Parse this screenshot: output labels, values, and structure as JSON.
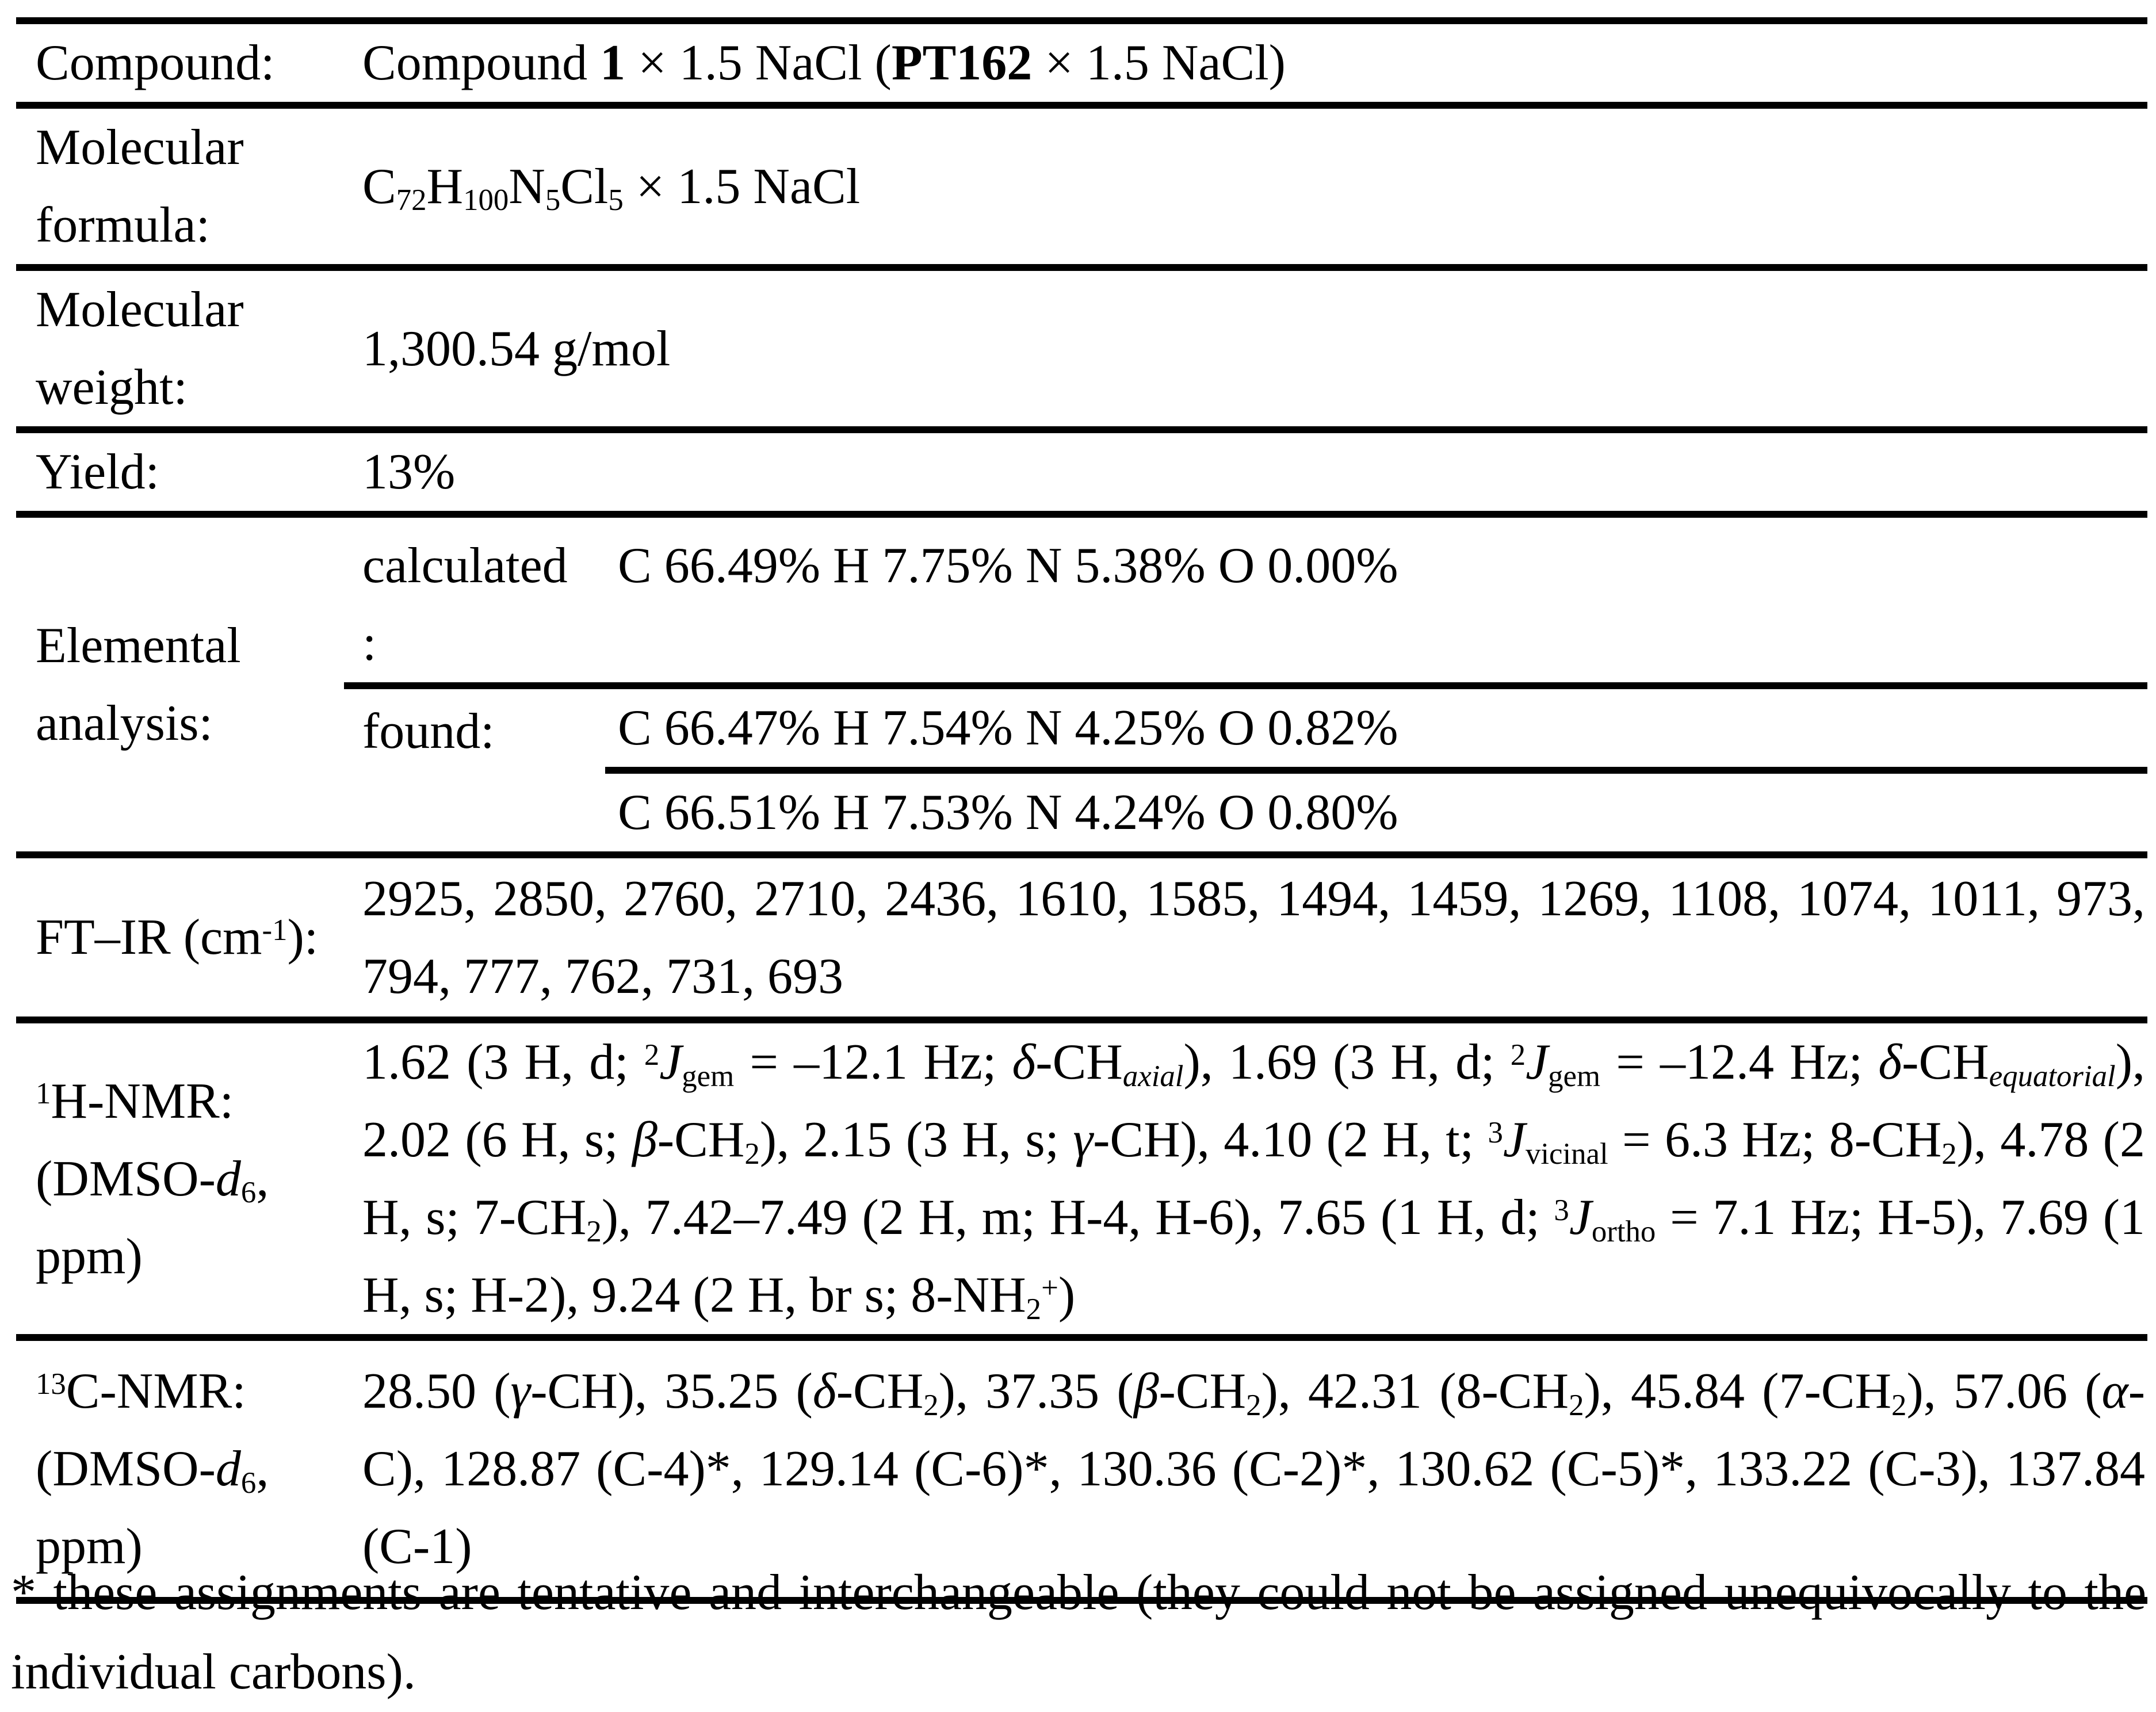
{
  "rows": {
    "compound": {
      "label": [
        {
          "t": "r",
          "s": "Compound:"
        }
      ],
      "value": [
        {
          "t": "r",
          "s": "Compound "
        },
        {
          "t": "b",
          "s": "1"
        },
        {
          "t": "r",
          "s": " × 1.5 NaCl ("
        },
        {
          "t": "b",
          "s": "PT162"
        },
        {
          "t": "r",
          "s": " × 1.5 NaCl)"
        }
      ]
    },
    "formula": {
      "label": [
        {
          "t": "r",
          "s": "Molecular"
        },
        {
          "t": "br"
        },
        {
          "t": "r",
          "s": "formula:"
        }
      ],
      "value": [
        {
          "t": "r",
          "s": "C"
        },
        {
          "t": "sub",
          "s": "72"
        },
        {
          "t": "r",
          "s": "H"
        },
        {
          "t": "sub",
          "s": "100"
        },
        {
          "t": "r",
          "s": "N"
        },
        {
          "t": "sub",
          "s": "5"
        },
        {
          "t": "r",
          "s": "Cl"
        },
        {
          "t": "sub",
          "s": "5"
        },
        {
          "t": "r",
          "s": " × 1.5 NaCl"
        }
      ]
    },
    "weight": {
      "label": [
        {
          "t": "r",
          "s": "Molecular"
        },
        {
          "t": "br"
        },
        {
          "t": "r",
          "s": "weight:"
        }
      ],
      "value": [
        {
          "t": "r",
          "s": "1,300.54 g/mol"
        }
      ]
    },
    "yield": {
      "label": [
        {
          "t": "r",
          "s": "Yield:"
        }
      ],
      "value": [
        {
          "t": "r",
          "s": "13%"
        }
      ]
    },
    "elemental": {
      "label": [
        {
          "t": "r",
          "s": "Elemental"
        },
        {
          "t": "br"
        },
        {
          "t": "r",
          "s": "analysis:"
        }
      ],
      "calculated": {
        "label": [
          {
            "t": "r",
            "s": "calculated"
          },
          {
            "t": "br"
          },
          {
            "t": "r",
            "s": ":"
          }
        ],
        "value": [
          {
            "t": "r",
            "s": "C 66.49% H 7.75% N 5.38% O 0.00%"
          }
        ]
      },
      "found": {
        "label": [
          {
            "t": "r",
            "s": "found:"
          }
        ],
        "value": [
          {
            "t": "r",
            "s": "C 66.47% H 7.54% N 4.25% O 0.82%"
          }
        ],
        "value2": [
          {
            "t": "r",
            "s": "C 66.51% H 7.53% N 4.24% O 0.80%"
          }
        ]
      }
    },
    "ftir": {
      "label": [
        {
          "t": "r",
          "s": "FT–IR (cm"
        },
        {
          "t": "sup",
          "s": "-1"
        },
        {
          "t": "r",
          "s": "):"
        }
      ],
      "value": [
        {
          "t": "r",
          "s": "2925, 2850, 2760, 2710, 2436, 1610, 1585, 1494, 1459, 1269, 1108, 1074, 1011, 973, 794, 777, 762, 731, 693"
        }
      ]
    },
    "hnmr": {
      "label": [
        {
          "t": "sup",
          "s": "1"
        },
        {
          "t": "r",
          "s": "H-NMR:"
        },
        {
          "t": "br"
        },
        {
          "t": "r",
          "s": "(DMSO-"
        },
        {
          "t": "i",
          "s": "d"
        },
        {
          "t": "sub",
          "s": "6"
        },
        {
          "t": "r",
          "s": ","
        },
        {
          "t": "br"
        },
        {
          "t": "r",
          "s": "ppm)"
        }
      ],
      "value": [
        {
          "t": "r",
          "s": "1.62 (3 H, d; "
        },
        {
          "t": "sup",
          "s": "2"
        },
        {
          "t": "i",
          "s": "J"
        },
        {
          "t": "sub",
          "s": "gem"
        },
        {
          "t": "r",
          "s": " = –12.1 Hz; "
        },
        {
          "t": "i",
          "s": "δ"
        },
        {
          "t": "r",
          "s": "-CH"
        },
        {
          "t": "subi",
          "s": "axial"
        },
        {
          "t": "r",
          "s": "), 1.69 (3 H, d; "
        },
        {
          "t": "sup",
          "s": "2"
        },
        {
          "t": "i",
          "s": "J"
        },
        {
          "t": "sub",
          "s": "gem"
        },
        {
          "t": "r",
          "s": " = –12.4 Hz; "
        },
        {
          "t": "i",
          "s": "δ"
        },
        {
          "t": "r",
          "s": "-CH"
        },
        {
          "t": "subi",
          "s": "equatorial"
        },
        {
          "t": "r",
          "s": "), 2.02 (6 H, s; "
        },
        {
          "t": "i",
          "s": "β"
        },
        {
          "t": "r",
          "s": "-CH"
        },
        {
          "t": "sub",
          "s": "2"
        },
        {
          "t": "r",
          "s": "), 2.15 (3 H, s; "
        },
        {
          "t": "i",
          "s": "γ"
        },
        {
          "t": "r",
          "s": "-CH), 4.10 (2 H, t; "
        },
        {
          "t": "sup",
          "s": "3"
        },
        {
          "t": "i",
          "s": "J"
        },
        {
          "t": "sub",
          "s": "vicinal"
        },
        {
          "t": "r",
          "s": " = 6.3 Hz; 8-CH"
        },
        {
          "t": "sub",
          "s": "2"
        },
        {
          "t": "r",
          "s": "), 4.78 (2 H, s; 7-CH"
        },
        {
          "t": "sub",
          "s": "2"
        },
        {
          "t": "r",
          "s": "), 7.42–7.49 (2 H, m; H-4, H-6), 7.65 (1 H, d; "
        },
        {
          "t": "sup",
          "s": "3"
        },
        {
          "t": "i",
          "s": "J"
        },
        {
          "t": "sub",
          "s": "ortho"
        },
        {
          "t": "r",
          "s": " = 7.1 Hz; H-5), 7.69 (1 H, s; H-2), 9.24 (2 H, br s; 8-NH"
        },
        {
          "t": "sub",
          "s": "2"
        },
        {
          "t": "sup",
          "s": "+"
        },
        {
          "t": "r",
          "s": ")"
        }
      ]
    },
    "cnmr": {
      "label": [
        {
          "t": "sup",
          "s": "13"
        },
        {
          "t": "r",
          "s": "C-NMR:"
        },
        {
          "t": "br"
        },
        {
          "t": "r",
          "s": "(DMSO-"
        },
        {
          "t": "i",
          "s": "d"
        },
        {
          "t": "sub",
          "s": "6"
        },
        {
          "t": "r",
          "s": ","
        },
        {
          "t": "br"
        },
        {
          "t": "r",
          "s": "ppm)"
        }
      ],
      "value": [
        {
          "t": "r",
          "s": "28.50 ("
        },
        {
          "t": "i",
          "s": "γ"
        },
        {
          "t": "r",
          "s": "-CH), 35.25 ("
        },
        {
          "t": "i",
          "s": "δ"
        },
        {
          "t": "r",
          "s": "-CH"
        },
        {
          "t": "sub",
          "s": "2"
        },
        {
          "t": "r",
          "s": "), 37.35 ("
        },
        {
          "t": "i",
          "s": "β"
        },
        {
          "t": "r",
          "s": "-CH"
        },
        {
          "t": "sub",
          "s": "2"
        },
        {
          "t": "r",
          "s": "), 42.31 (8-CH"
        },
        {
          "t": "sub",
          "s": "2"
        },
        {
          "t": "r",
          "s": "), 45.84 (7-CH"
        },
        {
          "t": "sub",
          "s": "2"
        },
        {
          "t": "r",
          "s": "), 57.06 ("
        },
        {
          "t": "i",
          "s": "α"
        },
        {
          "t": "r",
          "s": "-C), 128.87 (C-4)*, 129.14 (C-6)*, 130.36 (C-2)*, 130.62 (C-5)*, 133.22 (C-3), 137.84 (C-1)"
        }
      ]
    }
  },
  "footnote": "* these assignments are tentative and interchangeable (they could not be assigned unequivocally to the individual carbons)."
}
